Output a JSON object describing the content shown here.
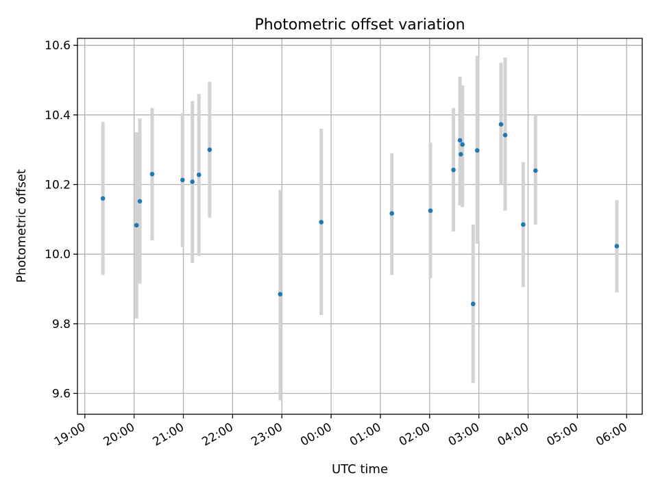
{
  "chart_data": {
    "type": "scatter",
    "title": "Photometric offset variation",
    "xlabel": "UTC time",
    "ylabel": "Photometric offset",
    "grid": true,
    "x_axis": {
      "kind": "time",
      "min": "18:51",
      "max": "06:19",
      "ticks": [
        "19:00",
        "20:00",
        "21:00",
        "22:00",
        "23:00",
        "00:00",
        "01:00",
        "02:00",
        "03:00",
        "04:00",
        "05:00",
        "06:00"
      ]
    },
    "y_axis": {
      "min": 9.54,
      "max": 10.62,
      "ticks": [
        9.6,
        9.8,
        10.0,
        10.2,
        10.4,
        10.6
      ],
      "tick_labels": [
        "9.6",
        "9.8",
        "10.0",
        "10.2",
        "10.4",
        "10.6"
      ]
    },
    "series": [
      {
        "marker_color": "#1f77b4",
        "errorbar_color": "#d3d3d3",
        "points": [
          {
            "x": "19:22",
            "y": 10.16,
            "ylow": 9.94,
            "yhigh": 10.38
          },
          {
            "x": "20:03",
            "y": 10.083,
            "ylow": 9.815,
            "yhigh": 10.35
          },
          {
            "x": "20:07",
            "y": 10.152,
            "ylow": 9.915,
            "yhigh": 10.39
          },
          {
            "x": "20:22",
            "y": 10.23,
            "ylow": 10.04,
            "yhigh": 10.42
          },
          {
            "x": "20:59",
            "y": 10.213,
            "ylow": 10.02,
            "yhigh": 10.405
          },
          {
            "x": "21:11",
            "y": 10.208,
            "ylow": 9.975,
            "yhigh": 10.44
          },
          {
            "x": "21:19",
            "y": 10.228,
            "ylow": 9.995,
            "yhigh": 10.46
          },
          {
            "x": "21:32",
            "y": 10.3,
            "ylow": 10.105,
            "yhigh": 10.495
          },
          {
            "x": "22:58",
            "y": 9.885,
            "ylow": 9.58,
            "yhigh": 10.185
          },
          {
            "x": "23:48",
            "y": 10.092,
            "ylow": 9.825,
            "yhigh": 10.36
          },
          {
            "x": "01:14",
            "y": 10.117,
            "ylow": 9.94,
            "yhigh": 10.29
          },
          {
            "x": "02:01",
            "y": 10.125,
            "ylow": 9.93,
            "yhigh": 10.32
          },
          {
            "x": "02:29",
            "y": 10.242,
            "ylow": 10.065,
            "yhigh": 10.42
          },
          {
            "x": "02:37",
            "y": 10.327,
            "ylow": 10.14,
            "yhigh": 10.51
          },
          {
            "x": "02:38",
            "y": 10.287,
            "ylow": 10.14,
            "yhigh": 10.43
          },
          {
            "x": "02:40",
            "y": 10.315,
            "ylow": 10.135,
            "yhigh": 10.485
          },
          {
            "x": "02:53",
            "y": 9.857,
            "ylow": 9.63,
            "yhigh": 10.085
          },
          {
            "x": "02:58",
            "y": 10.298,
            "ylow": 10.03,
            "yhigh": 10.57
          },
          {
            "x": "03:27",
            "y": 10.373,
            "ylow": 10.2,
            "yhigh": 10.55
          },
          {
            "x": "03:32",
            "y": 10.342,
            "ylow": 10.125,
            "yhigh": 10.565
          },
          {
            "x": "03:54",
            "y": 10.085,
            "ylow": 9.905,
            "yhigh": 10.265
          },
          {
            "x": "04:09",
            "y": 10.24,
            "ylow": 10.085,
            "yhigh": 10.4
          },
          {
            "x": "05:48",
            "y": 10.023,
            "ylow": 9.89,
            "yhigh": 10.155
          }
        ]
      }
    ]
  }
}
